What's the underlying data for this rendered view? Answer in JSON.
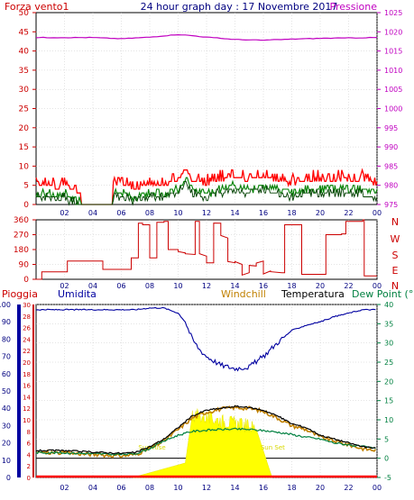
{
  "header": {
    "title": "24 hour graph day : 17 Novembre 2017",
    "left_label": "Forza vento1",
    "right_label": "Pressione"
  },
  "wind_chart": {
    "y_left_ticks": [
      "0",
      "5",
      "10",
      "15",
      "20",
      "25",
      "30",
      "35",
      "40",
      "45",
      "50"
    ],
    "y_right_ticks": [
      "975",
      "980",
      "985",
      "990",
      "995",
      "1000",
      "1005",
      "1010",
      "1015",
      "1020",
      "1025"
    ],
    "x_ticks": [
      "02",
      "04",
      "06",
      "08",
      "10",
      "12",
      "14",
      "16",
      "18",
      "20",
      "22",
      "00"
    ]
  },
  "direction_chart": {
    "y_left_ticks": [
      "0",
      "90",
      "180",
      "270",
      "360"
    ],
    "compass_labels": [
      "N",
      "W",
      "S",
      "E",
      "N"
    ],
    "x_ticks": [
      "02",
      "04",
      "06",
      "08",
      "10",
      "12",
      "14",
      "16",
      "18",
      "20",
      "22",
      "00"
    ]
  },
  "weather_chart": {
    "labels": {
      "rain": "Pioggia",
      "humidity": "Umidita",
      "windchill": "Windchill",
      "temperature": "Temperatura",
      "dewpoint": "Dew Point (°C"
    },
    "humidity_ticks": [
      "0",
      "10",
      "20",
      "30",
      "40",
      "50",
      "60",
      "70",
      "80",
      "90",
      "100"
    ],
    "rain_ticks": [
      "0",
      "2",
      "4",
      "6",
      "8",
      "10",
      "12",
      "14",
      "16",
      "18",
      "20",
      "22",
      "24",
      "26",
      "28",
      "30"
    ],
    "temp_ticks": [
      "-5",
      "0",
      "5",
      "10",
      "15",
      "20",
      "25",
      "30",
      "35",
      "40"
    ],
    "x_ticks": [
      "02",
      "04",
      "06",
      "08",
      "10",
      "12",
      "14",
      "16",
      "18",
      "20",
      "22",
      "00"
    ],
    "sun_rise": "Sun Rise",
    "sun_set": "Sun Set"
  },
  "colors": {
    "wind_gust": "#ff0000",
    "wind_avg": "#008000",
    "wind_dark": "#004000",
    "pressure": "#c000c0",
    "direction": "#cc0000",
    "humidity": "#0000a0",
    "temperature": "#000000",
    "windchill": "#c08000",
    "dewpoint": "#008040",
    "solar": "#ffff00",
    "rain": "#ff0000",
    "grid": "#c8c8c8"
  },
  "chart_data": [
    {
      "type": "line",
      "x_label": "hour",
      "x_range": [
        0,
        24
      ],
      "series": [
        {
          "name": "Forza vento1",
          "axis": "left",
          "range": [
            0,
            50
          ],
          "points": [
            [
              0,
              3
            ],
            [
              1,
              3
            ],
            [
              1.5,
              2
            ],
            [
              2,
              3
            ],
            [
              3,
              1
            ],
            [
              4,
              0
            ],
            [
              5,
              0
            ],
            [
              5.5,
              3
            ],
            [
              6,
              3
            ],
            [
              7,
              2
            ],
            [
              8,
              3
            ],
            [
              9,
              3
            ],
            [
              10,
              4
            ],
            [
              10.5,
              7
            ],
            [
              11,
              4
            ],
            [
              12,
              3
            ],
            [
              13,
              4
            ],
            [
              14,
              5
            ],
            [
              15,
              4
            ],
            [
              16,
              5
            ],
            [
              17,
              4
            ],
            [
              18,
              3
            ],
            [
              19,
              4
            ],
            [
              20,
              4
            ],
            [
              21,
              4
            ],
            [
              22,
              4
            ],
            [
              23,
              4
            ],
            [
              24,
              3
            ]
          ]
        },
        {
          "name": "Pressione",
          "axis": "right",
          "range": [
            975,
            1025
          ],
          "points": [
            [
              0,
              1018.5
            ],
            [
              2,
              1018.5
            ],
            [
              4,
              1018.5
            ],
            [
              6,
              1018.2
            ],
            [
              8,
              1018.6
            ],
            [
              10,
              1019.3
            ],
            [
              11,
              1019.0
            ],
            [
              12,
              1018.6
            ],
            [
              14,
              1018.0
            ],
            [
              16,
              1017.8
            ],
            [
              18,
              1018.1
            ],
            [
              20,
              1018.3
            ],
            [
              22,
              1018.4
            ],
            [
              24,
              1018.5
            ]
          ]
        }
      ]
    },
    {
      "type": "line",
      "x_range": [
        0,
        24
      ],
      "y_range": [
        0,
        360
      ],
      "series": [
        {
          "name": "direction",
          "points": [
            [
              0,
              0
            ],
            [
              0.3,
              0
            ],
            [
              0.4,
              45
            ],
            [
              2,
              45
            ],
            [
              2.2,
              110
            ],
            [
              4.5,
              110
            ],
            [
              4.7,
              60
            ],
            [
              6.5,
              60
            ],
            [
              6.7,
              130
            ],
            [
              7.2,
              340
            ],
            [
              7.5,
              330
            ],
            [
              8,
              130
            ],
            [
              8.5,
              345
            ],
            [
              9,
              350
            ],
            [
              9.3,
              180
            ],
            [
              10,
              160
            ],
            [
              10.5,
              150
            ],
            [
              11.2,
              350
            ],
            [
              11.5,
              140
            ],
            [
              12,
              100
            ],
            [
              12.5,
              340
            ],
            [
              13,
              250
            ],
            [
              13.5,
              100
            ],
            [
              14,
              90
            ],
            [
              14.5,
              40
            ],
            [
              15,
              80
            ],
            [
              15.5,
              110
            ],
            [
              16,
              50
            ],
            [
              16.5,
              40
            ],
            [
              17.3,
              40
            ],
            [
              17.5,
              330
            ],
            [
              18.5,
              330
            ],
            [
              18.7,
              30
            ],
            [
              20.2,
              30
            ],
            [
              20.4,
              270
            ],
            [
              21.5,
              275
            ],
            [
              21.8,
              350
            ],
            [
              23,
              360
            ],
            [
              23.1,
              20
            ],
            [
              24,
              20
            ]
          ]
        }
      ]
    },
    {
      "type": "line",
      "x_range": [
        0,
        24
      ],
      "series": [
        {
          "name": "Umidita",
          "axis": "humidity",
          "range": [
            0,
            100
          ],
          "points": [
            [
              0,
              97
            ],
            [
              2,
              97
            ],
            [
              4,
              97
            ],
            [
              6,
              97
            ],
            [
              7,
              97
            ],
            [
              8,
              98
            ],
            [
              9,
              98
            ],
            [
              10,
              95
            ],
            [
              10.5,
              90
            ],
            [
              11,
              80
            ],
            [
              11.5,
              74
            ],
            [
              12,
              70
            ],
            [
              13,
              65
            ],
            [
              14,
              63
            ],
            [
              15,
              64
            ],
            [
              16,
              70
            ],
            [
              17,
              78
            ],
            [
              18,
              85
            ],
            [
              19,
              88
            ],
            [
              20,
              90
            ],
            [
              21,
              93
            ],
            [
              22,
              95
            ],
            [
              23,
              97
            ],
            [
              24,
              97
            ]
          ]
        },
        {
          "name": "Temperatura",
          "axis": "temp",
          "range": [
            -5,
            40
          ],
          "points": [
            [
              0,
              2
            ],
            [
              2,
              2
            ],
            [
              4,
              1.6
            ],
            [
              6,
              1.3
            ],
            [
              7,
              1.5
            ],
            [
              8,
              3
            ],
            [
              9,
              5
            ],
            [
              10,
              8
            ],
            [
              11,
              11
            ],
            [
              12,
              12.5
            ],
            [
              13,
              13
            ],
            [
              14,
              13.5
            ],
            [
              15,
              13.2
            ],
            [
              16,
              12.5
            ],
            [
              17,
              11
            ],
            [
              18,
              9
            ],
            [
              19,
              8
            ],
            [
              20,
              6
            ],
            [
              21,
              5
            ],
            [
              22,
              4
            ],
            [
              23,
              3
            ],
            [
              24,
              2.5
            ]
          ]
        },
        {
          "name": "Windchill",
          "axis": "temp",
          "range": [
            -5,
            40
          ],
          "points": [
            [
              0,
              1.5
            ],
            [
              2,
              1.4
            ],
            [
              4,
              1.0
            ],
            [
              6,
              0.6
            ],
            [
              7,
              1.0
            ],
            [
              8,
              2.5
            ],
            [
              9,
              4.5
            ],
            [
              10,
              7.5
            ],
            [
              11,
              10.5
            ],
            [
              12,
              12
            ],
            [
              13,
              12.8
            ],
            [
              14,
              13.2
            ],
            [
              15,
              13
            ],
            [
              16,
              12.2
            ],
            [
              17,
              10.5
            ],
            [
              18,
              8.5
            ],
            [
              19,
              7.5
            ],
            [
              20,
              5.5
            ],
            [
              21,
              4.5
            ],
            [
              22,
              3.5
            ],
            [
              23,
              2.5
            ],
            [
              24,
              2
            ]
          ]
        },
        {
          "name": "Dew Point (°C",
          "axis": "temp",
          "range": [
            -5,
            40
          ],
          "points": [
            [
              0,
              1.5
            ],
            [
              2,
              1.4
            ],
            [
              4,
              1.2
            ],
            [
              6,
              1.0
            ],
            [
              7,
              1.2
            ],
            [
              8,
              2.5
            ],
            [
              9,
              4.5
            ],
            [
              10,
              6
            ],
            [
              11,
              7
            ],
            [
              12,
              7.3
            ],
            [
              13,
              7.5
            ],
            [
              14,
              7.6
            ],
            [
              15,
              7.5
            ],
            [
              16,
              7.2
            ],
            [
              17,
              6.8
            ],
            [
              18,
              6.2
            ],
            [
              19,
              5.5
            ],
            [
              20,
              5
            ],
            [
              21,
              4
            ],
            [
              22,
              3.5
            ],
            [
              23,
              3
            ],
            [
              24,
              2.5
            ]
          ]
        },
        {
          "name": "Pioggia",
          "axis": "rain",
          "range": [
            0,
            30
          ],
          "points": [
            [
              0,
              0
            ],
            [
              24,
              0
            ]
          ]
        }
      ]
    }
  ]
}
